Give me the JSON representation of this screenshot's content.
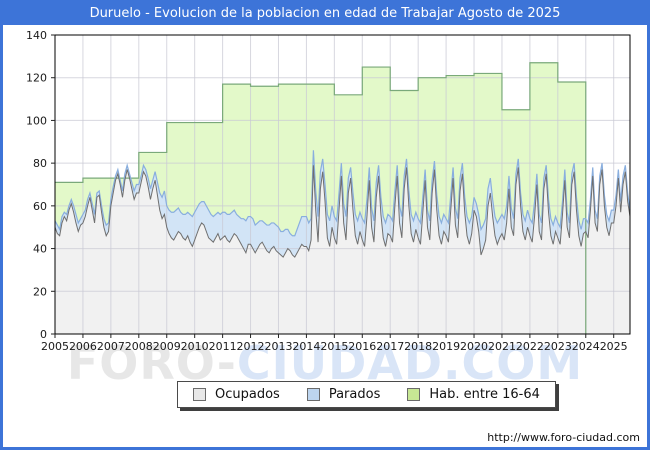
{
  "window": {
    "title": "Duruelo - Evolucion de la poblacion en edad de Trabajar Agosto de 2025",
    "url": "http://www.foro-ciudad.com"
  },
  "watermark": {
    "gray": "FORO-",
    "blue": "CIUDAD.COM"
  },
  "colors": {
    "frame_blue": "#3d74d8",
    "grid": "#c9c9d4",
    "axis": "#000000",
    "tick_text": "#1a1a1a"
  },
  "chart_data": {
    "type": "area",
    "title": "Duruelo - Evolucion de la poblacion en edad de Trabajar Agosto de 2025",
    "xlabel": "",
    "ylabel": "",
    "ylim": [
      0,
      140
    ],
    "yticks": [
      0,
      20,
      40,
      60,
      80,
      100,
      120,
      140
    ],
    "x_tick_years": [
      2005,
      2006,
      2007,
      2008,
      2009,
      2010,
      2011,
      2012,
      2013,
      2014,
      2015,
      2016,
      2017,
      2018,
      2019,
      2020,
      2021,
      2022,
      2023,
      2024,
      2025
    ],
    "x_start": "2005-01",
    "x_end": "2025-08",
    "grid": true,
    "legend_position": "bottom",
    "series": [
      {
        "name": "Ocupados",
        "kind": "monthly",
        "fill": "#f1f1f1",
        "line": "#6f6f6f",
        "swatch": "#e8e8e8",
        "values": [
          50,
          47,
          46,
          52,
          55,
          53,
          58,
          61,
          57,
          52,
          48,
          51,
          52,
          55,
          60,
          64,
          58,
          52,
          64,
          65,
          57,
          50,
          46,
          48,
          60,
          66,
          72,
          75,
          70,
          64,
          72,
          77,
          73,
          68,
          63,
          66,
          66,
          71,
          76,
          74,
          69,
          63,
          68,
          72,
          65,
          58,
          54,
          56,
          50,
          47,
          45,
          44,
          46,
          48,
          47,
          45,
          44,
          46,
          43,
          41,
          44,
          47,
          50,
          52,
          51,
          48,
          45,
          44,
          43,
          45,
          47,
          44,
          45,
          46,
          44,
          43,
          45,
          47,
          46,
          44,
          42,
          40,
          38,
          42,
          42,
          40,
          38,
          40,
          42,
          43,
          41,
          39,
          38,
          40,
          41,
          39,
          38,
          37,
          36,
          38,
          40,
          39,
          37,
          36,
          38,
          40,
          42,
          41,
          41,
          39,
          44,
          79,
          58,
          43,
          68,
          76,
          62,
          45,
          41,
          50,
          45,
          42,
          58,
          74,
          52,
          44,
          66,
          73,
          58,
          46,
          42,
          48,
          44,
          41,
          55,
          72,
          50,
          43,
          64,
          74,
          56,
          45,
          41,
          47,
          46,
          43,
          60,
          74,
          52,
          45,
          68,
          78,
          60,
          47,
          43,
          49,
          45,
          42,
          57,
          72,
          50,
          44,
          66,
          77,
          58,
          46,
          42,
          48,
          46,
          43,
          58,
          73,
          51,
          45,
          67,
          75,
          57,
          46,
          42,
          47,
          58,
          55,
          48,
          37,
          40,
          44,
          60,
          66,
          55,
          46,
          42,
          45,
          47,
          44,
          52,
          68,
          50,
          46,
          70,
          78,
          60,
          48,
          44,
          50,
          46,
          43,
          55,
          70,
          48,
          44,
          68,
          75,
          57,
          46,
          42,
          48,
          45,
          42,
          56,
          72,
          50,
          45,
          70,
          76,
          58,
          46,
          41,
          47,
          48,
          45,
          58,
          74,
          52,
          48,
          70,
          77,
          60,
          50,
          46,
          52,
          52,
          60,
          73,
          57,
          70,
          76,
          62,
          55
        ]
      },
      {
        "name": "Parados",
        "kind": "monthly_stacked_on_previous",
        "fill": "#d2e4f6",
        "line": "#89aede",
        "swatch": "#bdd5ef",
        "values": [
          3,
          4,
          3,
          3,
          2,
          3,
          2,
          2,
          3,
          4,
          4,
          3,
          4,
          3,
          3,
          2,
          3,
          4,
          2,
          2,
          3,
          4,
          5,
          4,
          3,
          3,
          2,
          2,
          2,
          3,
          3,
          2,
          2,
          3,
          4,
          4,
          4,
          3,
          3,
          3,
          4,
          5,
          4,
          4,
          6,
          8,
          10,
          11,
          10,
          11,
          12,
          13,
          12,
          11,
          10,
          11,
          12,
          11,
          13,
          14,
          13,
          12,
          11,
          10,
          11,
          12,
          13,
          12,
          12,
          11,
          10,
          12,
          12,
          11,
          12,
          13,
          12,
          11,
          10,
          11,
          12,
          14,
          15,
          13,
          13,
          14,
          13,
          12,
          11,
          10,
          11,
          12,
          13,
          12,
          11,
          12,
          12,
          11,
          12,
          11,
          9,
          8,
          9,
          10,
          11,
          12,
          13,
          14,
          14,
          13,
          10,
          7,
          9,
          12,
          8,
          6,
          8,
          11,
          12,
          10,
          10,
          11,
          8,
          6,
          9,
          11,
          7,
          5,
          8,
          10,
          11,
          9,
          10,
          11,
          8,
          6,
          9,
          10,
          7,
          5,
          8,
          10,
          11,
          9,
          9,
          10,
          7,
          5,
          8,
          10,
          6,
          4,
          7,
          9,
          10,
          8,
          9,
          10,
          7,
          5,
          8,
          9,
          6,
          4,
          7,
          9,
          10,
          8,
          8,
          9,
          7,
          5,
          8,
          9,
          6,
          5,
          7,
          9,
          10,
          8,
          6,
          6,
          8,
          12,
          11,
          10,
          8,
          7,
          8,
          9,
          10,
          9,
          9,
          10,
          8,
          6,
          9,
          8,
          5,
          4,
          6,
          8,
          9,
          8,
          8,
          9,
          7,
          5,
          8,
          8,
          5,
          4,
          6,
          8,
          9,
          7,
          7,
          8,
          6,
          5,
          7,
          7,
          5,
          4,
          6,
          7,
          8,
          7,
          6,
          7,
          5,
          4,
          6,
          6,
          4,
          3,
          5,
          6,
          7,
          6,
          6,
          5,
          4,
          5,
          4,
          3,
          4,
          3
        ]
      },
      {
        "name": "Hab. entre 16-64",
        "kind": "annual_step",
        "fill": "#e3f9c9",
        "line": "#7aa97a",
        "swatch": "#c7e794",
        "years": [
          2005,
          2006,
          2007,
          2008,
          2009,
          2010,
          2011,
          2012,
          2013,
          2014,
          2015,
          2016,
          2017,
          2018,
          2019,
          2020,
          2021,
          2022,
          2023
        ],
        "values": [
          71,
          73,
          73,
          85,
          99,
          99,
          117,
          116,
          117,
          117,
          112,
          125,
          114,
          120,
          121,
          122,
          105,
          127,
          118
        ]
      }
    ]
  }
}
